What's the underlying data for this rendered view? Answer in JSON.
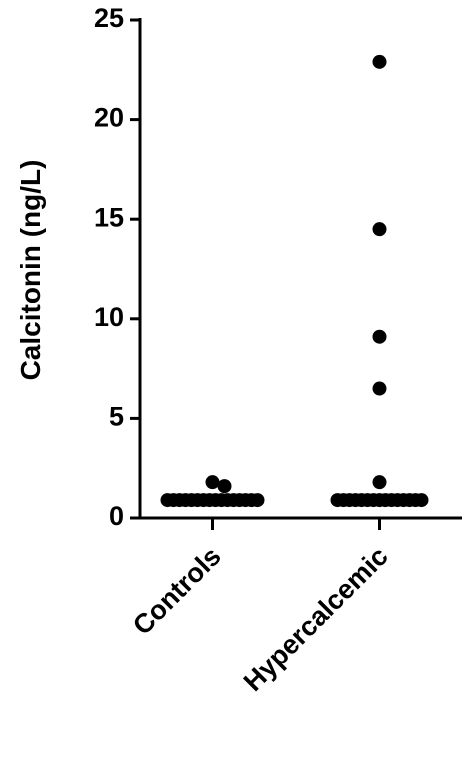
{
  "chart_data": {
    "type": "strip",
    "y_label": "Calcitonin (ng/L)",
    "categories": [
      "Controls",
      "Hypercalcemic"
    ],
    "values": [
      [
        1.8,
        1.6,
        0.9,
        0.9,
        0.9,
        0.9,
        0.9,
        0.9,
        0.9,
        0.9,
        0.9,
        0.9,
        0.9,
        0.9,
        0.9,
        0.9,
        0.9,
        0.9
      ],
      [
        22.9,
        14.5,
        9.1,
        6.5,
        1.8,
        0.9,
        0.9,
        0.9,
        0.9,
        0.9,
        0.9,
        0.9,
        0.9,
        0.9,
        0.9,
        0.9,
        0.9,
        0.9,
        0.9,
        0.9
      ]
    ],
    "color": "#000000",
    "ylim": [
      0,
      25
    ],
    "yticks": [
      0,
      5,
      10,
      15,
      20,
      25
    ]
  }
}
